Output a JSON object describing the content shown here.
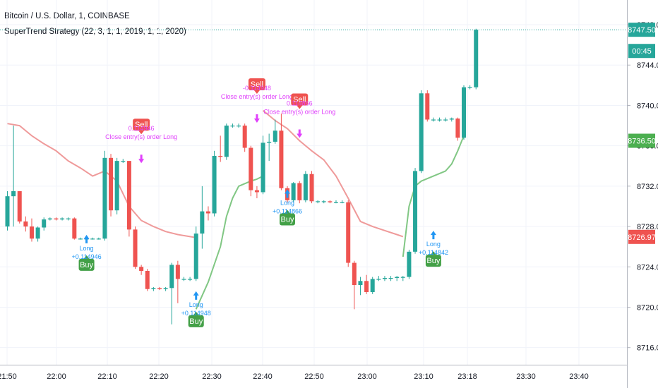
{
  "header": {
    "symbol": "Bitcoin / U.S. Dollar, 1, COINBASE",
    "strategy": "SuperTrend Strategy (22, 3, 1, 1, 2019, 1, 1, 2020)"
  },
  "chart_data": {
    "type": "candlestick",
    "ylim": [
      8714.3,
      8750.45
    ],
    "x_ticks": [
      "21:50",
      "22:00",
      "22:10",
      "22:20",
      "22:30",
      "22:40",
      "22:50",
      "23:00",
      "23:10",
      "23:18",
      "23:30",
      "23:40"
    ],
    "y_ticks": [
      8716.0,
      8720.0,
      8724.0,
      8728.0,
      8732.0,
      8736.0,
      8740.0,
      8744.0,
      8748.0
    ],
    "price_labels": [
      {
        "text": "8747.50",
        "value": 8747.5,
        "color": "#26a69a"
      },
      {
        "text": "00:45",
        "value": 8745.4,
        "color": "#26a69a"
      },
      {
        "text": "8736.50",
        "value": 8736.5,
        "color": "#4caf50"
      },
      {
        "text": "8726.97",
        "value": 8726.97,
        "color": "#ef5350"
      }
    ],
    "candles": [
      {
        "o": 8728.0,
        "h": 8731.5,
        "l": 8727.6,
        "c": 8731.0
      },
      {
        "o": 8731.0,
        "h": 8738.0,
        "l": 8728.0,
        "c": 8731.5
      },
      {
        "o": 8731.5,
        "h": 8731.5,
        "l": 8728.3,
        "c": 8728.5
      },
      {
        "o": 8728.5,
        "h": 8729.0,
        "l": 8727.5,
        "c": 8728.0
      },
      {
        "o": 8728.0,
        "h": 8728.8,
        "l": 8726.5,
        "c": 8726.8
      },
      {
        "o": 8726.8,
        "h": 8728.0,
        "l": 8726.5,
        "c": 8727.9
      },
      {
        "o": 8727.9,
        "h": 8728.9,
        "l": 8727.6,
        "c": 8728.7
      },
      {
        "o": 8728.7,
        "h": 8728.9,
        "l": 8728.6,
        "c": 8728.8
      },
      {
        "o": 8728.8,
        "h": 8728.9,
        "l": 8728.6,
        "c": 8728.7
      },
      {
        "o": 8728.7,
        "h": 8728.9,
        "l": 8728.6,
        "c": 8728.8
      },
      {
        "o": 8728.8,
        "h": 8728.9,
        "l": 8728.6,
        "c": 8728.8
      },
      {
        "o": 8728.8,
        "h": 8728.9,
        "l": 8726.7,
        "c": 8726.8
      },
      {
        "o": 8726.8,
        "h": 8726.9,
        "l": 8726.7,
        "c": 8726.8
      },
      {
        "o": 8726.8,
        "h": 8726.9,
        "l": 8726.7,
        "c": 8726.8
      },
      {
        "o": 8726.8,
        "h": 8726.9,
        "l": 8726.7,
        "c": 8726.8
      },
      {
        "o": 8726.8,
        "h": 8726.9,
        "l": 8726.7,
        "c": 8726.8
      },
      {
        "o": 8726.8,
        "h": 8735.5,
        "l": 8726.6,
        "c": 8734.8
      },
      {
        "o": 8734.8,
        "h": 8735.2,
        "l": 8729.0,
        "c": 8729.6
      },
      {
        "o": 8729.6,
        "h": 8734.8,
        "l": 8729.2,
        "c": 8734.5
      },
      {
        "o": 8734.5,
        "h": 8734.7,
        "l": 8734.3,
        "c": 8734.5
      },
      {
        "o": 8734.5,
        "h": 8734.5,
        "l": 8727.0,
        "c": 8727.7
      },
      {
        "o": 8727.7,
        "h": 8728.0,
        "l": 8723.8,
        "c": 8724.0
      },
      {
        "o": 8724.0,
        "h": 8724.2,
        "l": 8723.2,
        "c": 8723.6
      },
      {
        "o": 8723.6,
        "h": 8723.8,
        "l": 8721.6,
        "c": 8721.8
      },
      {
        "o": 8721.8,
        "h": 8722.0,
        "l": 8721.6,
        "c": 8721.9
      },
      {
        "o": 8721.9,
        "h": 8722.0,
        "l": 8721.7,
        "c": 8721.8
      },
      {
        "o": 8721.8,
        "h": 8722.0,
        "l": 8721.6,
        "c": 8721.9
      },
      {
        "o": 8721.9,
        "h": 8724.4,
        "l": 8718.3,
        "c": 8724.2
      },
      {
        "o": 8724.2,
        "h": 8724.6,
        "l": 8720.4,
        "c": 8722.8
      },
      {
        "o": 8722.8,
        "h": 8723.0,
        "l": 8722.6,
        "c": 8722.8
      },
      {
        "o": 8722.8,
        "h": 8723.0,
        "l": 8722.6,
        "c": 8722.8
      },
      {
        "o": 8722.8,
        "h": 8728.0,
        "l": 8722.6,
        "c": 8727.3
      },
      {
        "o": 8727.3,
        "h": 8732.0,
        "l": 8725.8,
        "c": 8729.5
      },
      {
        "o": 8729.5,
        "h": 8730.0,
        "l": 8728.6,
        "c": 8729.3
      },
      {
        "o": 8729.3,
        "h": 8735.5,
        "l": 8729.0,
        "c": 8735.0
      },
      {
        "o": 8735.0,
        "h": 8737.0,
        "l": 8734.4,
        "c": 8734.9
      },
      {
        "o": 8734.9,
        "h": 8738.2,
        "l": 8734.6,
        "c": 8738.0
      },
      {
        "o": 8738.0,
        "h": 8738.2,
        "l": 8737.8,
        "c": 8738.0
      },
      {
        "o": 8738.0,
        "h": 8738.2,
        "l": 8737.8,
        "c": 8738.0
      },
      {
        "o": 8738.0,
        "h": 8738.2,
        "l": 8735.4,
        "c": 8735.8
      },
      {
        "o": 8735.8,
        "h": 8736.0,
        "l": 8731.0,
        "c": 8731.6
      },
      {
        "o": 8731.6,
        "h": 8732.0,
        "l": 8730.8,
        "c": 8731.4
      },
      {
        "o": 8731.4,
        "h": 8737.0,
        "l": 8731.2,
        "c": 8736.3
      },
      {
        "o": 8736.3,
        "h": 8737.2,
        "l": 8734.5,
        "c": 8736.4
      },
      {
        "o": 8736.4,
        "h": 8738.6,
        "l": 8736.2,
        "c": 8737.5
      },
      {
        "o": 8737.5,
        "h": 8739.2,
        "l": 8731.6,
        "c": 8731.8
      },
      {
        "o": 8731.8,
        "h": 8732.0,
        "l": 8730.4,
        "c": 8730.6
      },
      {
        "o": 8730.6,
        "h": 8732.4,
        "l": 8730.4,
        "c": 8732.3
      },
      {
        "o": 8732.3,
        "h": 8732.5,
        "l": 8730.3,
        "c": 8730.6
      },
      {
        "o": 8730.6,
        "h": 8733.5,
        "l": 8730.4,
        "c": 8733.2
      },
      {
        "o": 8733.2,
        "h": 8733.5,
        "l": 8730.3,
        "c": 8730.5
      },
      {
        "o": 8730.5,
        "h": 8730.6,
        "l": 8730.3,
        "c": 8730.5
      },
      {
        "o": 8730.5,
        "h": 8730.6,
        "l": 8730.3,
        "c": 8730.5
      },
      {
        "o": 8730.5,
        "h": 8730.6,
        "l": 8730.3,
        "c": 8730.4
      },
      {
        "o": 8730.4,
        "h": 8730.6,
        "l": 8730.3,
        "c": 8730.4
      },
      {
        "o": 8730.4,
        "h": 8730.6,
        "l": 8730.3,
        "c": 8730.4
      },
      {
        "o": 8730.4,
        "h": 8730.6,
        "l": 8724.0,
        "c": 8724.4
      },
      {
        "o": 8724.4,
        "h": 8724.6,
        "l": 8719.8,
        "c": 8722.2
      },
      {
        "o": 8722.2,
        "h": 8723.0,
        "l": 8721.2,
        "c": 8722.6
      },
      {
        "o": 8722.6,
        "h": 8723.2,
        "l": 8721.3,
        "c": 8721.5
      },
      {
        "o": 8721.5,
        "h": 8723.0,
        "l": 8721.3,
        "c": 8722.8
      },
      {
        "o": 8722.8,
        "h": 8723.1,
        "l": 8722.6,
        "c": 8722.8
      },
      {
        "o": 8722.8,
        "h": 8723.1,
        "l": 8722.6,
        "c": 8722.9
      },
      {
        "o": 8722.9,
        "h": 8723.1,
        "l": 8722.6,
        "c": 8722.9
      },
      {
        "o": 8722.9,
        "h": 8723.1,
        "l": 8722.6,
        "c": 8723.0
      },
      {
        "o": 8723.0,
        "h": 8723.1,
        "l": 8722.6,
        "c": 8723.0
      },
      {
        "o": 8723.0,
        "h": 8725.7,
        "l": 8722.8,
        "c": 8725.5
      },
      {
        "o": 8725.5,
        "h": 8733.8,
        "l": 8725.3,
        "c": 8733.5
      },
      {
        "o": 8733.5,
        "h": 8741.5,
        "l": 8733.3,
        "c": 8741.2
      },
      {
        "o": 8741.2,
        "h": 8741.5,
        "l": 8738.4,
        "c": 8738.6
      },
      {
        "o": 8738.6,
        "h": 8738.8,
        "l": 8738.4,
        "c": 8738.6
      },
      {
        "o": 8738.6,
        "h": 8738.8,
        "l": 8738.4,
        "c": 8738.6
      },
      {
        "o": 8738.6,
        "h": 8738.8,
        "l": 8738.4,
        "c": 8738.6
      },
      {
        "o": 8738.6,
        "h": 8738.8,
        "l": 8738.4,
        "c": 8738.7
      },
      {
        "o": 8738.7,
        "h": 8738.8,
        "l": 8736.5,
        "c": 8736.8
      },
      {
        "o": 8736.8,
        "h": 8742.0,
        "l": 8736.6,
        "c": 8741.8
      },
      {
        "o": 8741.8,
        "h": 8742.0,
        "l": 8741.6,
        "c": 8741.8
      },
      {
        "o": 8741.8,
        "h": 8747.6,
        "l": 8741.6,
        "c": 8747.5
      }
    ],
    "supertrend_red": [
      [
        0,
        8738.2
      ],
      [
        2,
        8738.0
      ],
      [
        4,
        8737.0
      ],
      [
        6,
        8736.2
      ],
      [
        8,
        8735.5
      ],
      [
        10,
        8734.5
      ],
      [
        12,
        8733.8
      ],
      [
        14,
        8733.0
      ],
      [
        16,
        8733.5
      ],
      [
        18,
        8732.5
      ],
      [
        20,
        8730.0
      ],
      [
        22,
        8728.6
      ],
      [
        24,
        8728.0
      ],
      [
        26,
        8727.5
      ],
      [
        28,
        8727.2
      ],
      [
        30,
        8727.0
      ],
      [
        31,
        8726.9
      ]
    ],
    "supertrend_green": [
      [
        31,
        8719.8
      ],
      [
        33,
        8722.5
      ],
      [
        35,
        8726.0
      ],
      [
        36,
        8729.0
      ],
      [
        37,
        8730.8
      ],
      [
        38,
        8732.0
      ],
      [
        40,
        8732.5
      ],
      [
        41,
        8732.7
      ],
      [
        42,
        8733.0
      ]
    ],
    "supertrend_red2": [
      [
        42,
        8739.5
      ],
      [
        44,
        8738.5
      ],
      [
        46,
        8737.7
      ],
      [
        48,
        8736.5
      ],
      [
        50,
        8735.5
      ],
      [
        52,
        8734.6
      ],
      [
        54,
        8733.0
      ],
      [
        56,
        8730.8
      ],
      [
        58,
        8728.5
      ],
      [
        60,
        8728.0
      ],
      [
        62,
        8727.6
      ],
      [
        64,
        8727.2
      ],
      [
        65,
        8727.0
      ]
    ],
    "supertrend_green2": [
      [
        65,
        8725.0
      ],
      [
        66,
        8730.0
      ],
      [
        67,
        8732.0
      ],
      [
        68,
        8732.5
      ],
      [
        70,
        8733.0
      ],
      [
        72,
        8733.5
      ],
      [
        73,
        8734.2
      ],
      [
        74,
        8735.5
      ],
      [
        75,
        8737.0
      ]
    ],
    "signals": [
      {
        "label": "Buy",
        "type": "buy",
        "index": 13,
        "value": 8724.8,
        "subtitle": "Long\n+0.114946"
      },
      {
        "label": "Sell",
        "type": "sell",
        "index": 22,
        "value": 8737.5,
        "subtitle": "0.114946\nClose entry(s) order Long"
      },
      {
        "label": "Buy",
        "type": "buy",
        "index": 31,
        "value": 8719.2,
        "subtitle": "Long\n+0.114948"
      },
      {
        "label": "Sell",
        "type": "sell",
        "index": 41,
        "value": 8741.5,
        "subtitle": "-0.114948\nClose entry(s) order Long"
      },
      {
        "label": "Sell",
        "type": "sell",
        "index": 48,
        "value": 8740.0,
        "subtitle": "0.114866\nClose entry(s) order Long"
      },
      {
        "label": "Buy",
        "type": "buy",
        "index": 46,
        "value": 8729.3,
        "subtitle": "Long\n+0.114866"
      },
      {
        "label": "Buy",
        "type": "buy",
        "index": 70,
        "value": 8725.2,
        "subtitle": "Long\n+0.114842"
      }
    ],
    "colors": {
      "up": "#26a69a",
      "down": "#ef5350",
      "st_up": "#81c784",
      "st_down": "#ef9a9a",
      "buy": "#43a047",
      "sell": "#ef5350",
      "entry": "#2196f3",
      "exit": "#e040fb"
    }
  }
}
